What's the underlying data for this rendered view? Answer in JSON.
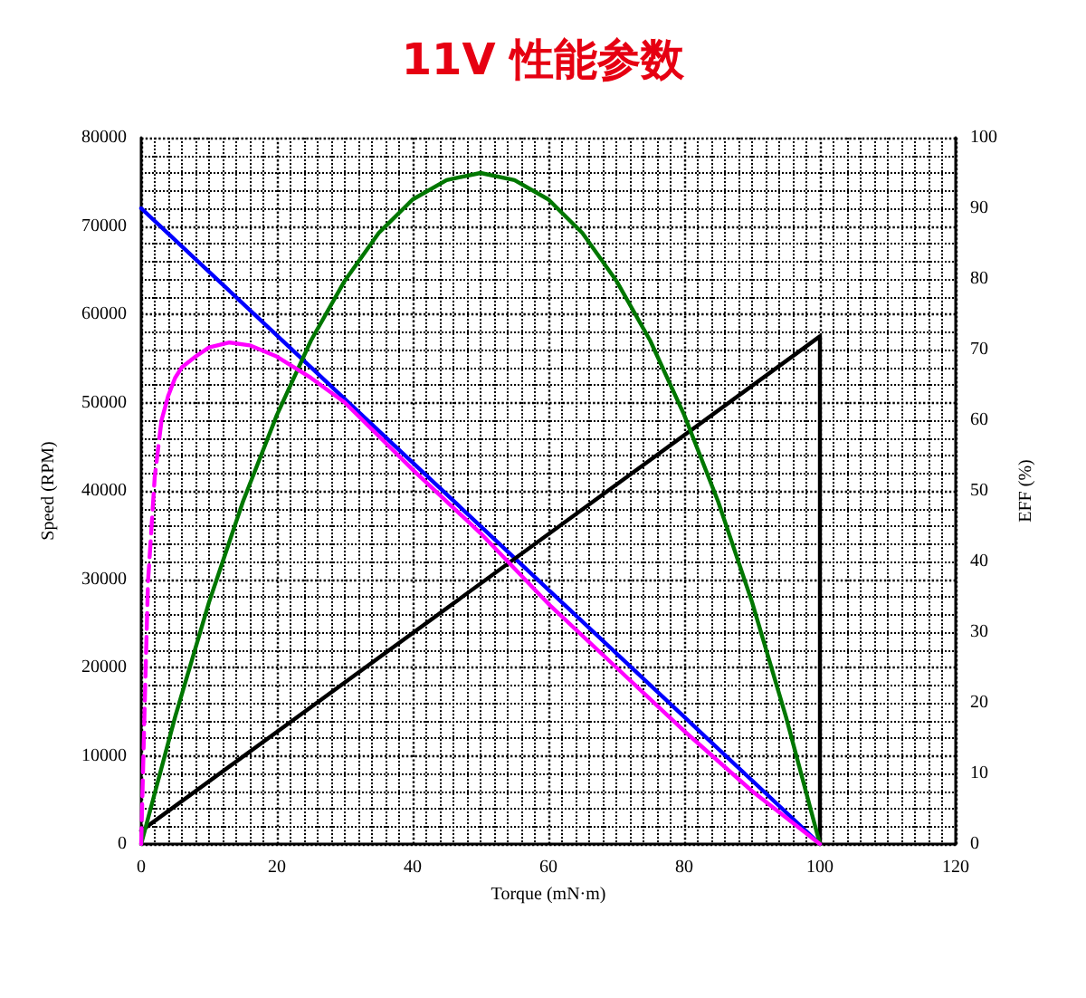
{
  "chart_data": {
    "type": "line",
    "title": "11V 性能参数",
    "xlabel": "Torque (mN·m)",
    "ylabel": "Speed (RPM)",
    "y2label": "EFF (%)",
    "xlim": [
      0,
      120
    ],
    "xticks": [
      0,
      20,
      40,
      60,
      80,
      100,
      120
    ],
    "ylim": [
      0,
      80000
    ],
    "yticks": [
      0,
      10000,
      20000,
      30000,
      40000,
      50000,
      60000,
      70000,
      80000
    ],
    "y2lim": [
      0,
      100
    ],
    "y2ticks": [
      0,
      10,
      20,
      30,
      40,
      50,
      60,
      70,
      80,
      90,
      100
    ],
    "grid": true,
    "marker": "none",
    "series": [
      {
        "color": "#0000ff",
        "x": [
          0,
          100
        ],
        "values": [
          72000,
          0
        ]
      },
      {
        "color": "#000000",
        "x": [
          0,
          100,
          100
        ],
        "values": [
          1500,
          57500,
          0
        ]
      },
      {
        "color": "#007700",
        "x": [
          0,
          5,
          10,
          15,
          20,
          25,
          30,
          35,
          40,
          45,
          50,
          55,
          60,
          65,
          70,
          75,
          80,
          85,
          90,
          95,
          100
        ],
        "values": [
          0,
          14400,
          27400,
          38800,
          48600,
          57000,
          63800,
          69200,
          73000,
          75200,
          76000,
          75200,
          73000,
          69200,
          63800,
          57000,
          48600,
          38800,
          27400,
          14400,
          0
        ]
      },
      {
        "color": "#ff00ff",
        "axis": "y2",
        "line_style": "dashed",
        "x": [
          0,
          0.5,
          1,
          2,
          3
        ],
        "values": [
          0,
          19,
          37,
          52,
          60
        ]
      },
      {
        "color": "#ff00ff",
        "axis": "y2",
        "line_style": "solid",
        "x": [
          3,
          4,
          5,
          6,
          8,
          10,
          13,
          16,
          20,
          25,
          30,
          40,
          50,
          60,
          70,
          80,
          90,
          100
        ],
        "values": [
          60,
          63.5,
          66,
          67.5,
          69,
          70.3,
          71,
          70.6,
          69,
          66,
          62.5,
          53,
          44,
          34,
          25,
          16,
          7.5,
          0
        ]
      }
    ]
  }
}
